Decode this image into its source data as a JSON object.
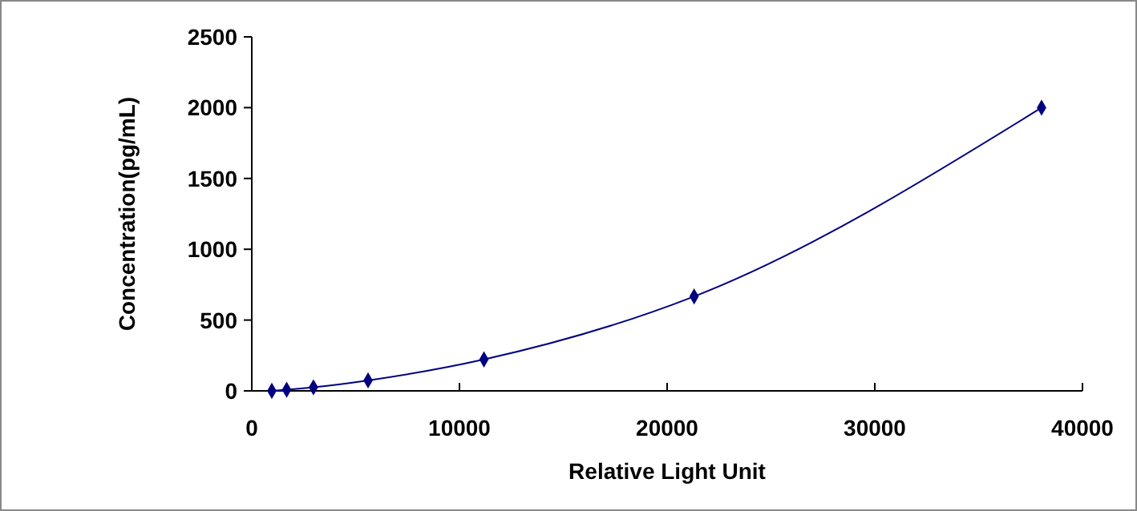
{
  "chart_data": {
    "type": "line",
    "xlabel": "Relative Light Unit",
    "ylabel": "Concentration(pg/mL)",
    "x": [
      965,
      1680,
      2970,
      5600,
      11180,
      21300,
      38030
    ],
    "series": [
      {
        "color": "#000080",
        "values": [
          0,
          8,
          25,
          74,
          222,
          667,
          2000
        ]
      }
    ],
    "xlim": [
      0,
      40000
    ],
    "xticks": [
      0,
      10000,
      20000,
      30000,
      40000
    ],
    "ylim": [
      0,
      2500
    ],
    "yticks": [
      0,
      500,
      1000,
      1500,
      2000,
      2500
    ],
    "marker": "diamond",
    "line_style": "solid"
  }
}
